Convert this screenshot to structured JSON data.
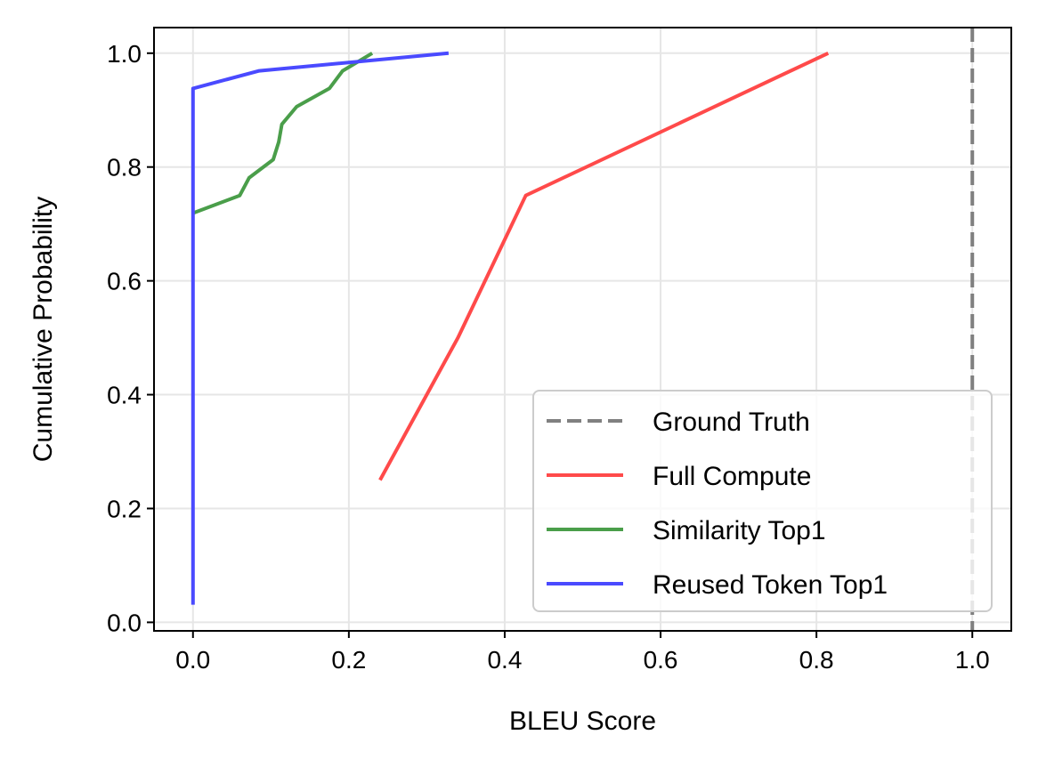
{
  "chart_data": {
    "type": "line",
    "title": "",
    "xlabel": "BLEU Score",
    "ylabel": "Cumulative Probability",
    "xlim": [
      -0.05,
      1.05
    ],
    "ylim": [
      -0.015,
      1.045
    ],
    "xticks": [
      0.0,
      0.2,
      0.4,
      0.6,
      0.8,
      1.0
    ],
    "xtick_labels": [
      "0.0",
      "0.2",
      "0.4",
      "0.6",
      "0.8",
      "1.0"
    ],
    "yticks": [
      0.0,
      0.2,
      0.4,
      0.6,
      0.8,
      1.0
    ],
    "ytick_labels": [
      "0.0",
      "0.2",
      "0.4",
      "0.6",
      "0.8",
      "1.0"
    ],
    "grid": true,
    "legend_position": "lower-right",
    "reference_lines": [
      {
        "name": "Ground Truth",
        "orientation": "vertical",
        "x": 1.0,
        "color": "#808080",
        "style": "dashed"
      }
    ],
    "series": [
      {
        "name": "Full Compute",
        "color": "#ff4a4a",
        "x": [
          0.24,
          0.34,
          0.427,
          0.815
        ],
        "y": [
          0.25,
          0.5,
          0.75,
          1.0
        ]
      },
      {
        "name": "Similarity Top1",
        "color": "#4a9e4a",
        "x": [
          0.0,
          0.06,
          0.072,
          0.103,
          0.11,
          0.114,
          0.133,
          0.175,
          0.192,
          0.23
        ],
        "y": [
          0.719,
          0.75,
          0.781,
          0.813,
          0.844,
          0.875,
          0.906,
          0.938,
          0.969,
          1.0
        ]
      },
      {
        "name": "Reused Token Top1",
        "color": "#4a4aff",
        "x": [
          0.0,
          0.0,
          0.085,
          0.328
        ],
        "y": [
          0.031,
          0.938,
          0.969,
          1.0
        ]
      }
    ],
    "legend_order": [
      "Ground Truth",
      "Full Compute",
      "Similarity Top1",
      "Reused Token Top1"
    ]
  }
}
